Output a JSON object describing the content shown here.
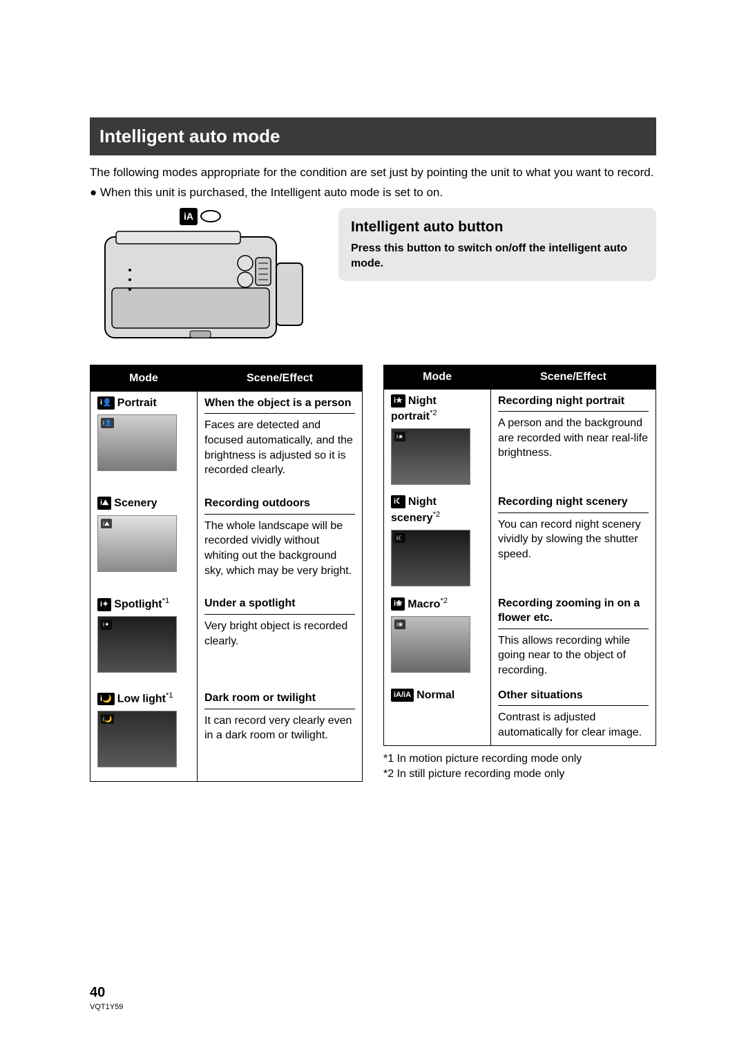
{
  "section_title": "Intelligent auto mode",
  "intro": "The following modes appropriate for the condition are set just by pointing the unit to what you want to record.",
  "bullet": "● When this unit is purchased, the Intelligent auto mode is set to on.",
  "ia_label": "iA",
  "button_box": {
    "title": "Intelligent auto button",
    "text": "Press this button to switch on/off the intelligent auto mode."
  },
  "table_headers": {
    "mode": "Mode",
    "effect": "Scene/Effect"
  },
  "table1": [
    {
      "icon": "i👤",
      "name": "Portrait",
      "sup": "",
      "effect_title": "When the object is a person",
      "effect_desc": "Faces are detected and focused automatically, and the brightness is adjusted so it is recorded clearly.",
      "thumb_gradient": [
        "#cfcfcf",
        "#7a7a7a"
      ]
    },
    {
      "icon": "i⛰",
      "name": "Scenery",
      "sup": "",
      "effect_title": "Recording outdoors",
      "effect_desc": "The whole landscape will be recorded vividly without whiting out the background sky, which may be very bright.",
      "thumb_gradient": [
        "#e2e2e2",
        "#8a8a8a"
      ]
    },
    {
      "icon": "i✦",
      "name": "Spotlight",
      "sup": "*1",
      "effect_title": "Under a spotlight",
      "effect_desc": "Very bright object is recorded clearly.",
      "thumb_gradient": [
        "#1e1e1e",
        "#505050"
      ]
    },
    {
      "icon": "i🌙",
      "name": "Low light",
      "sup": "*1",
      "effect_title": "Dark room or twilight",
      "effect_desc": "It can record very clearly even in a dark room or twilight.",
      "thumb_gradient": [
        "#2c2c2c",
        "#5a5a5a"
      ]
    }
  ],
  "table2": [
    {
      "icon": "i★",
      "name": "Night portrait",
      "sup": "*2",
      "effect_title": "Recording night portrait",
      "effect_desc": "A person and the background are recorded with near real-life brightness.",
      "thumb_gradient": [
        "#2f2f2f",
        "#696969"
      ]
    },
    {
      "icon": "i☾",
      "name": "Night scenery",
      "sup": "*2",
      "effect_title": "Recording night scenery",
      "effect_desc": "You can record night scenery vividly by slowing the shutter speed.",
      "thumb_gradient": [
        "#1a1a1a",
        "#4e4e4e"
      ]
    },
    {
      "icon": "i❀",
      "name": "Macro",
      "sup": "*2",
      "effect_title": "Recording zooming in on a flower etc.",
      "effect_desc": "This allows recording while going near to the object of recording.",
      "thumb_gradient": [
        "#bdbdbd",
        "#6a6a6a"
      ]
    },
    {
      "icon": "iA/iA",
      "name": "Normal",
      "sup": "",
      "effect_title": "Other situations",
      "effect_desc": "Contrast is adjusted automatically for clear image.",
      "no_thumb": true
    }
  ],
  "footnotes": {
    "f1": "*1   In motion picture recording mode only",
    "f2": "*2   In still picture recording mode only"
  },
  "page_number": "40",
  "doc_id": "VQT1Y59"
}
